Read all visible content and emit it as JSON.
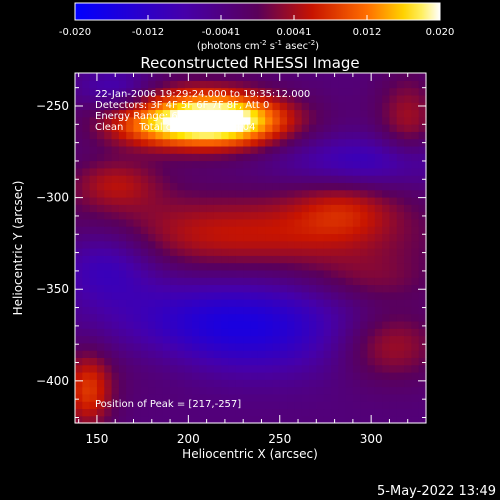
{
  "chart_data": {
    "type": "heatmap",
    "title": "Reconstructed RHESSI Image",
    "xlabel": "Heliocentric X (arcsec)",
    "ylabel": "Heliocentric Y (arcsec)",
    "xlim": [
      138,
      330
    ],
    "ylim": [
      -423,
      -232
    ],
    "xticks": [
      150,
      200,
      250,
      300
    ],
    "yticks": [
      -250,
      -300,
      -350,
      -400
    ],
    "colorbar": {
      "ticks": [
        "-0.020",
        "-0.012",
        "-0.0041",
        "0.0041",
        "0.012",
        "0.020"
      ],
      "range": [
        -0.02,
        0.02
      ],
      "unit_label": [
        "(photons cm",
        "-2",
        " s",
        "-1",
        " asec",
        "-2",
        ")"
      ]
    },
    "annotations": [
      "22-Jan-2006 19:29:24.000 to 19:35:12.000",
      "Detectors: 3F 4F 5F 6F 7F 8F, Att 0",
      "Energy Range: 6.0 - 12.0 keV",
      "Clean     Total counts: 2.15E+04",
      "Position of Peak = [217,-257]"
    ],
    "blobs": [
      {
        "x": 222,
        "y": -258,
        "sx": 25,
        "sy": 10,
        "value": 0.02
      },
      {
        "x": 195,
        "y": -255,
        "sx": 28,
        "sy": 12,
        "value": 0.011
      },
      {
        "x": 180,
        "y": -262,
        "sx": 20,
        "sy": 7,
        "value": 0.006
      },
      {
        "x": 228,
        "y": -320,
        "sx": 70,
        "sy": 16,
        "value": 0.009
      },
      {
        "x": 160,
        "y": -292,
        "sx": 18,
        "sy": 10,
        "value": 0.007
      },
      {
        "x": 285,
        "y": -305,
        "sx": 20,
        "sy": 12,
        "value": 0.006
      },
      {
        "x": 320,
        "y": -258,
        "sx": 12,
        "sy": 18,
        "value": 0.007
      },
      {
        "x": 145,
        "y": -405,
        "sx": 10,
        "sy": 15,
        "value": 0.011
      },
      {
        "x": 310,
        "y": -380,
        "sx": 20,
        "sy": 14,
        "value": 0.008
      },
      {
        "x": 300,
        "y": -345,
        "sx": 25,
        "sy": 10,
        "value": 0.004
      },
      {
        "x": 180,
        "y": -388,
        "sx": 30,
        "sy": 14,
        "value": 0.003
      },
      {
        "x": 225,
        "y": -370,
        "sx": 45,
        "sy": 18,
        "value": -0.013
      },
      {
        "x": 300,
        "y": -280,
        "sx": 35,
        "sy": 10,
        "value": -0.008
      },
      {
        "x": 155,
        "y": -335,
        "sx": 20,
        "sy": 15,
        "value": -0.009
      },
      {
        "x": 160,
        "y": -240,
        "sx": 15,
        "sy": 8,
        "value": -0.007
      }
    ],
    "background": -0.003
  },
  "date_stamp": "5-May-2022 13:49"
}
